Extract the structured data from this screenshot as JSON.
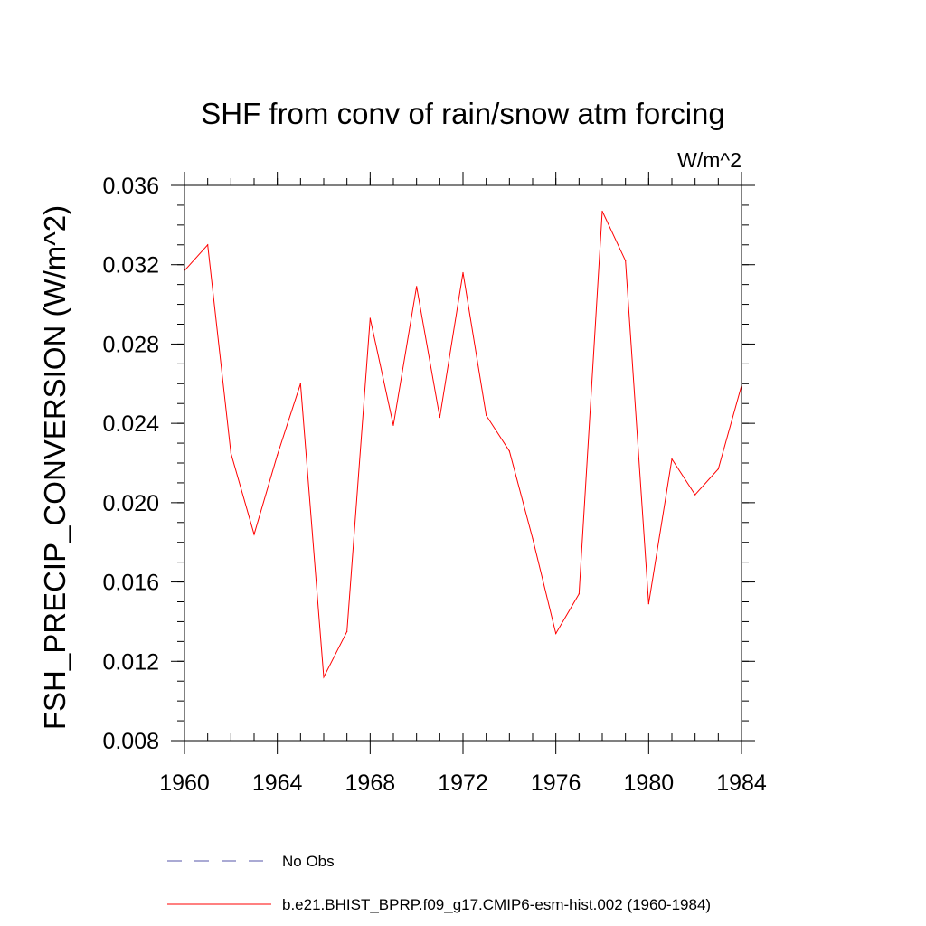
{
  "chart_data": {
    "type": "line",
    "title": "SHF from conv of rain/snow atm forcing",
    "units": "W/m^2",
    "ylabel": "FSH_PRECIP_CONVERSION  (W/m^2)",
    "xlabel": "",
    "xlim": [
      1960,
      1984
    ],
    "ylim": [
      0.008,
      0.036
    ],
    "x_ticks": [
      1960,
      1964,
      1968,
      1972,
      1976,
      1980,
      1984
    ],
    "x_tick_labels": [
      "1960",
      "1964",
      "1968",
      "1972",
      "1976",
      "1980",
      "1984"
    ],
    "y_ticks": [
      0.008,
      0.012,
      0.016,
      0.02,
      0.024,
      0.028,
      0.032,
      0.036
    ],
    "y_tick_labels": [
      "0.008",
      "0.012",
      "0.016",
      "0.020",
      "0.024",
      "0.028",
      "0.032",
      "0.036"
    ],
    "grid": false,
    "legend_position": "bottom",
    "series": [
      {
        "name": "No Obs",
        "color": "#5555aa",
        "dash": "dashed",
        "x": [],
        "values": []
      },
      {
        "name": "b.e21.BHIST_BPRP.f09_g17.CMIP6-esm-hist.002 (1960-1984)",
        "color": "#ff0000",
        "dash": "solid",
        "x": [
          1960,
          1961,
          1962,
          1963,
          1964,
          1965,
          1966,
          1967,
          1968,
          1969,
          1970,
          1971,
          1972,
          1973,
          1974,
          1975,
          1976,
          1977,
          1978,
          1979,
          1980,
          1981,
          1982,
          1983,
          1984
        ],
        "values": [
          0.0317,
          0.033,
          0.0225,
          0.0184,
          0.0224,
          0.026,
          0.0112,
          0.0135,
          0.0293,
          0.0239,
          0.0309,
          0.0243,
          0.0316,
          0.0244,
          0.0226,
          0.0182,
          0.0134,
          0.0154,
          0.0347,
          0.0322,
          0.0149,
          0.0222,
          0.0204,
          0.0217,
          0.0259
        ]
      }
    ]
  }
}
